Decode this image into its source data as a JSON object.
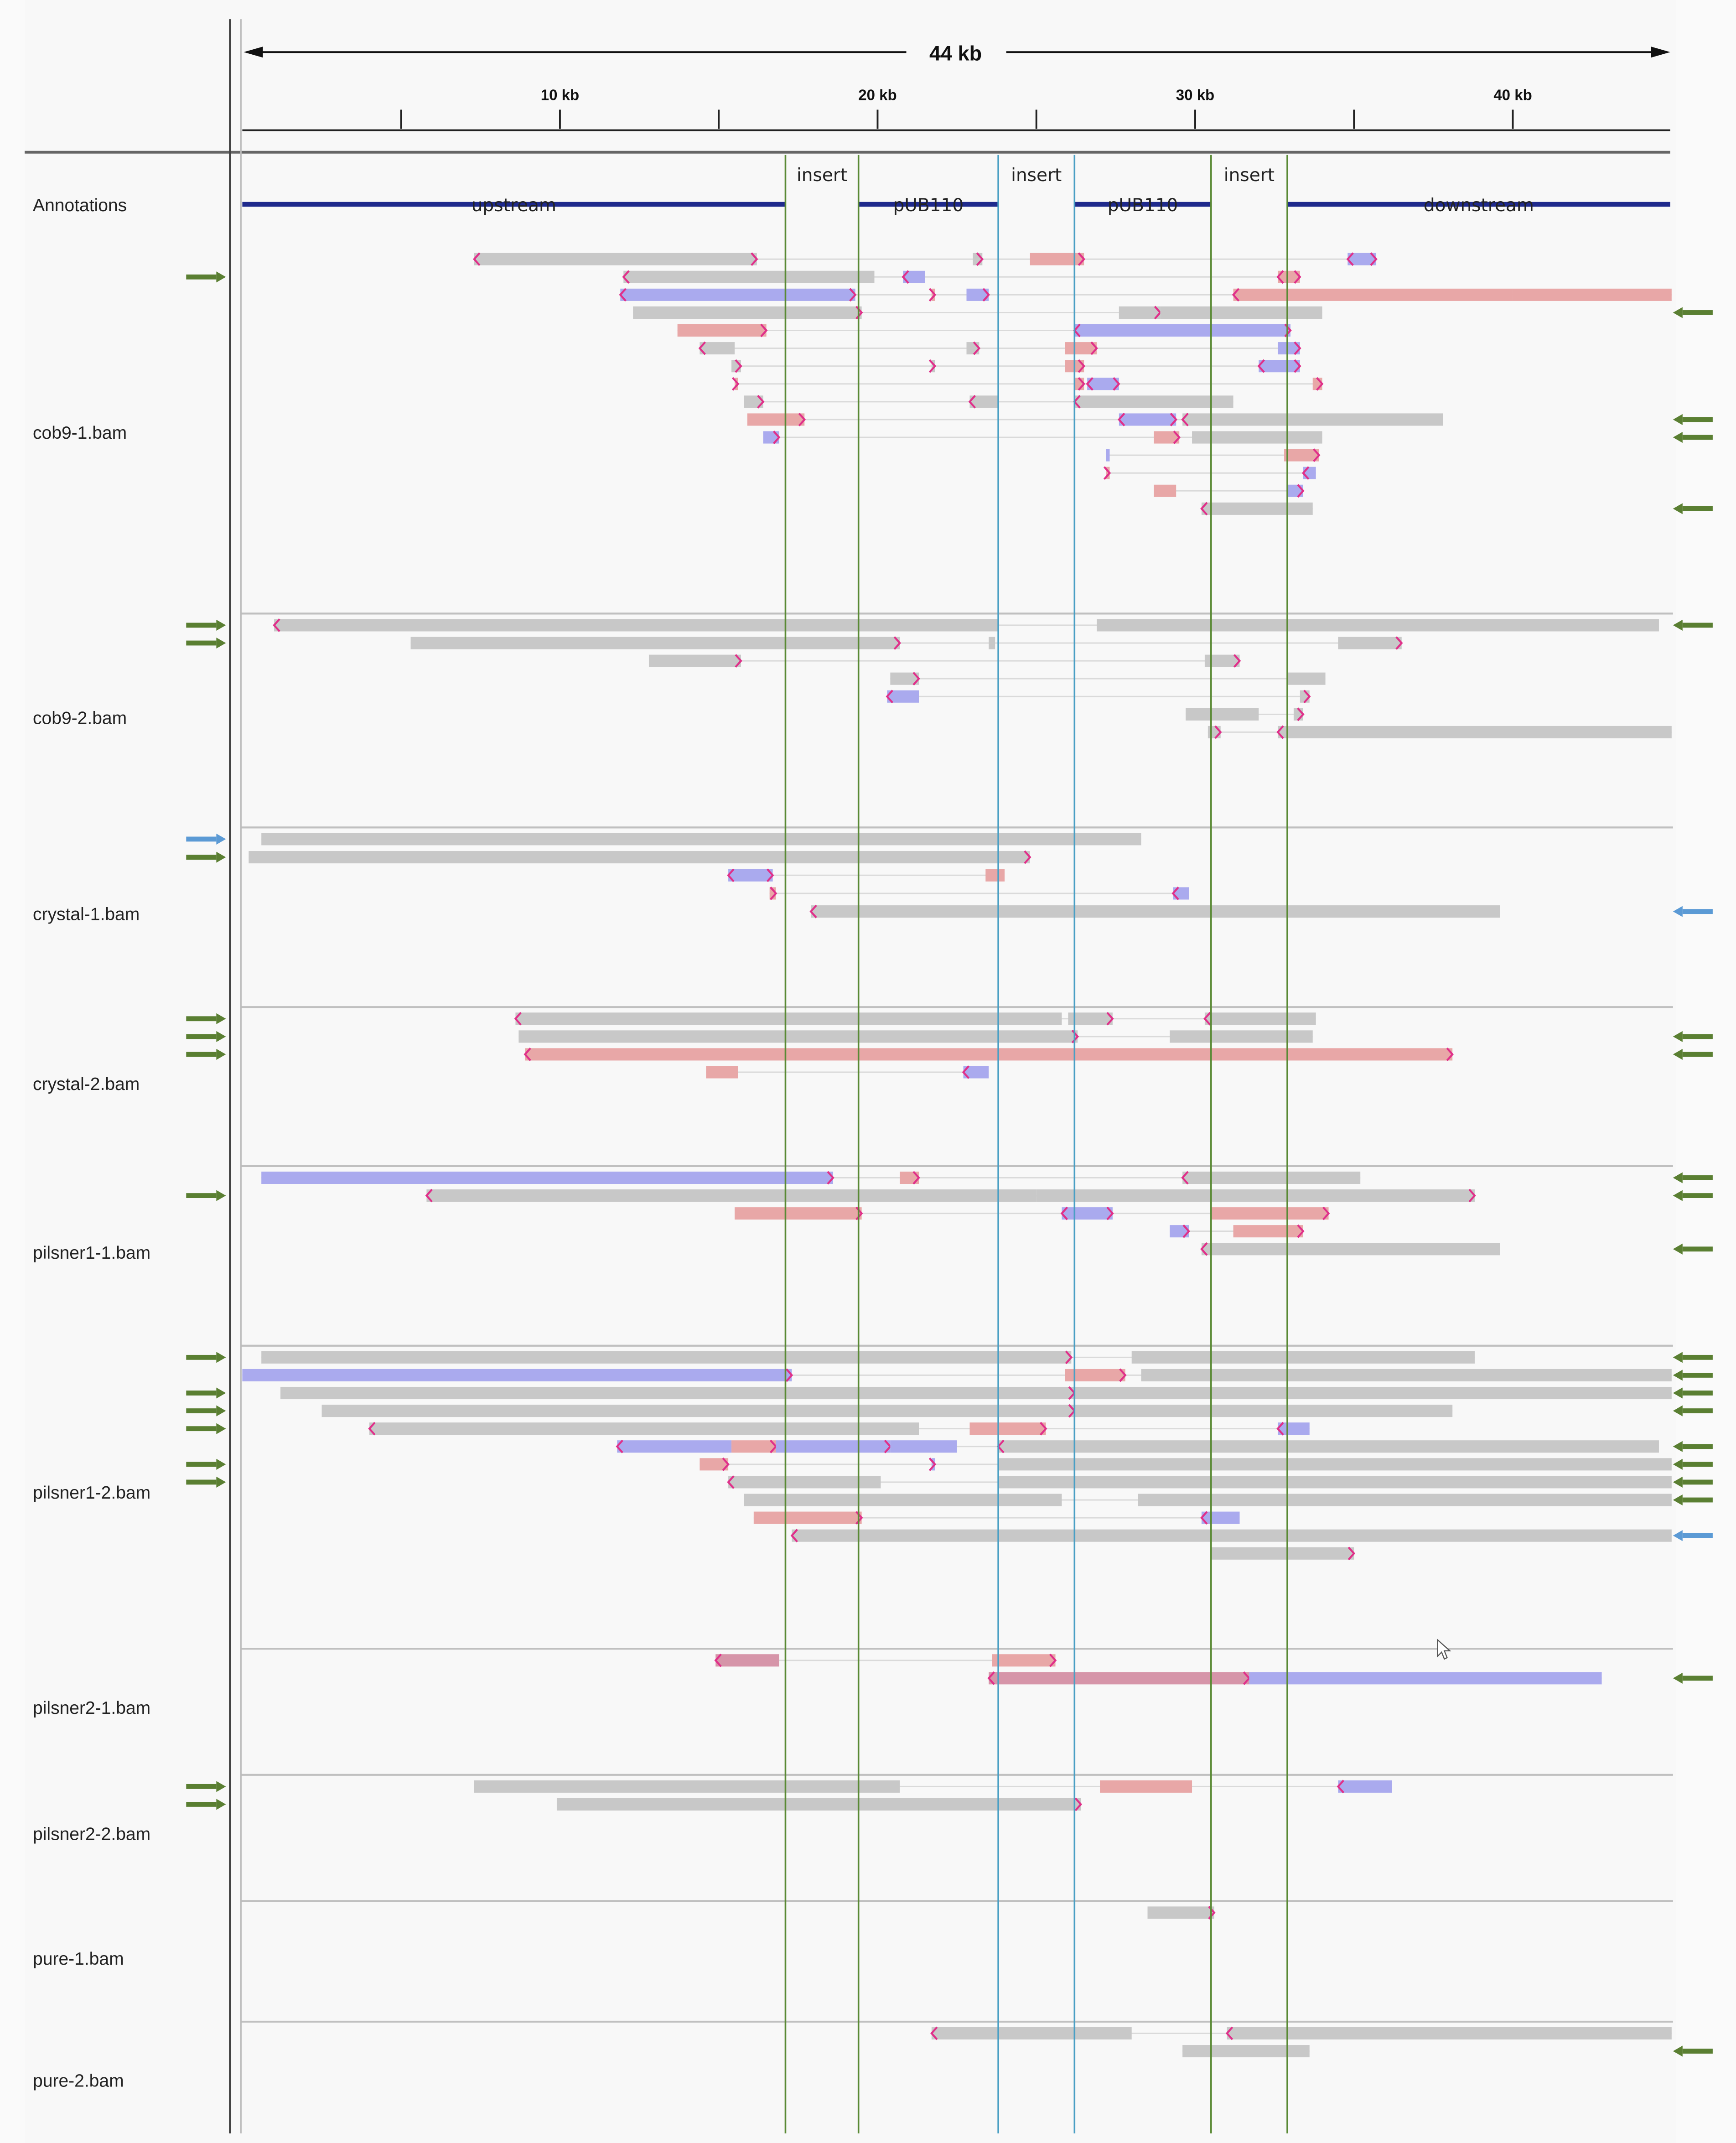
{
  "ruler": {
    "span_label": "44 kb",
    "ticks_kb": [
      5,
      10,
      15,
      20,
      25,
      30,
      35,
      40
    ],
    "tick_labels": [
      "10 kb",
      "20 kb",
      "30 kb",
      "40 kb"
    ],
    "labeled_ticks_kb": [
      10,
      20,
      30,
      40
    ]
  },
  "annotations": {
    "track_label": "Annotations",
    "features": [
      {
        "name": "upstream",
        "start": 0.0,
        "end": 17.1,
        "row": "lower"
      },
      {
        "name": "insert",
        "start": 17.1,
        "end": 19.4,
        "row": "upper"
      },
      {
        "name": "pUB110",
        "start": 19.4,
        "end": 23.8,
        "row": "lower"
      },
      {
        "name": "insert",
        "start": 23.8,
        "end": 26.2,
        "row": "upper"
      },
      {
        "name": "pUB110",
        "start": 26.2,
        "end": 30.5,
        "row": "lower"
      },
      {
        "name": "insert",
        "start": 30.5,
        "end": 32.9,
        "row": "upper"
      },
      {
        "name": "downstream",
        "start": 32.9,
        "end": 45.0,
        "row": "lower"
      }
    ]
  },
  "guide_lines_kb": [
    {
      "pos": 17.1,
      "color": "#5a8a35"
    },
    {
      "pos": 19.4,
      "color": "#5a8a35"
    },
    {
      "pos": 23.8,
      "color": "#4a9fc4"
    },
    {
      "pos": 26.2,
      "color": "#4a9fc4"
    },
    {
      "pos": 30.5,
      "color": "#5a8a35"
    },
    {
      "pos": 32.9,
      "color": "#5a8a35"
    }
  ],
  "colors": {
    "gray": "#c8c8c8",
    "red": "#e8a7a7",
    "blue": "#aaaaee",
    "mauve": "#d695a9",
    "arrow_green": "#5a7f32",
    "arrow_blue": "#5b9ad5",
    "clip": "#e0308a",
    "annot": "#1f2a8c"
  },
  "tracks": [
    {
      "name": "cob9-1.bam",
      "reads": [
        [
          0,
          7.3,
          16.2,
          "g",
          "<",
          ">"
        ],
        [
          0,
          23.0,
          23.3,
          "g",
          "",
          ">"
        ],
        [
          0,
          24.8,
          26.5,
          "r",
          "",
          ">"
        ],
        [
          0,
          34.8,
          35.7,
          "b",
          "<",
          ">"
        ],
        [
          1,
          12.0,
          19.9,
          "g",
          "<",
          ""
        ],
        [
          1,
          20.8,
          21.5,
          "b",
          "<",
          ""
        ],
        [
          1,
          32.6,
          33.3,
          "r",
          "<",
          ">"
        ],
        [
          2,
          11.9,
          19.3,
          "b",
          "<",
          ">"
        ],
        [
          2,
          21.7,
          21.8,
          "r",
          "",
          ">"
        ],
        [
          2,
          22.8,
          23.5,
          "b",
          "",
          ">"
        ],
        [
          2,
          31.2,
          40.0,
          "r",
          "<",
          ""
        ],
        [
          2,
          40.0,
          45.0,
          "r",
          "",
          ""
        ],
        [
          3,
          12.3,
          19.5,
          "g",
          "",
          ">"
        ],
        [
          3,
          27.6,
          28.9,
          "g",
          "",
          ">"
        ],
        [
          3,
          28.9,
          34.0,
          "g",
          "",
          ""
        ],
        [
          4,
          13.7,
          16.5,
          "r",
          "",
          ">"
        ],
        [
          4,
          26.2,
          33.0,
          "b",
          "<",
          ">"
        ],
        [
          5,
          14.4,
          15.5,
          "g",
          "<",
          ""
        ],
        [
          5,
          22.8,
          23.2,
          "g",
          "",
          ">"
        ],
        [
          5,
          25.9,
          26.9,
          "r",
          "",
          ">"
        ],
        [
          5,
          32.6,
          33.3,
          "b",
          "",
          ">"
        ],
        [
          6,
          15.4,
          15.7,
          "g",
          "",
          ">"
        ],
        [
          6,
          21.7,
          21.8,
          "g",
          "",
          ">"
        ],
        [
          6,
          25.9,
          26.5,
          "r",
          "",
          ">"
        ],
        [
          6,
          32.0,
          33.3,
          "b",
          "<",
          ">"
        ],
        [
          7,
          15.5,
          15.6,
          "r",
          "",
          ">"
        ],
        [
          7,
          26.2,
          26.5,
          "r",
          "",
          ">"
        ],
        [
          7,
          26.6,
          27.6,
          "b",
          "<",
          ">"
        ],
        [
          7,
          33.7,
          34.0,
          "r",
          "",
          ">"
        ],
        [
          8,
          15.8,
          16.4,
          "g",
          "",
          ">"
        ],
        [
          8,
          22.9,
          23.8,
          "g",
          "<",
          ""
        ],
        [
          8,
          26.2,
          31.2,
          "g",
          "<",
          ""
        ],
        [
          9,
          15.9,
          17.7,
          "r",
          "",
          ">"
        ],
        [
          9,
          27.6,
          29.4,
          "b",
          "<",
          ">"
        ],
        [
          9,
          29.6,
          37.8,
          "g",
          "<",
          ""
        ],
        [
          10,
          16.4,
          16.9,
          "b",
          "",
          ">"
        ],
        [
          10,
          28.7,
          29.5,
          "r",
          "",
          ">"
        ],
        [
          10,
          29.9,
          34.0,
          "g",
          "",
          ""
        ],
        [
          11,
          27.2,
          27.3,
          "b",
          "",
          ""
        ],
        [
          11,
          32.8,
          33.9,
          "r",
          "",
          ">"
        ],
        [
          12,
          27.2,
          27.3,
          "r",
          "",
          ">"
        ],
        [
          12,
          33.4,
          33.8,
          "b",
          "<",
          ""
        ],
        [
          13,
          28.7,
          29.4,
          "r",
          "",
          ""
        ],
        [
          13,
          32.9,
          33.4,
          "b",
          "",
          ">"
        ],
        [
          14,
          30.2,
          33.7,
          "g",
          "<",
          ""
        ]
      ],
      "left_arrows": [
        [
          1,
          "g"
        ]
      ],
      "right_arrows": [
        [
          3,
          "g"
        ],
        [
          9,
          "g"
        ],
        [
          10,
          "g"
        ],
        [
          14,
          "g"
        ]
      ]
    },
    {
      "name": "cob9-2.bam",
      "reads": [
        [
          0,
          1.0,
          23.8,
          "g",
          "<",
          ""
        ],
        [
          0,
          26.9,
          44.6,
          "g",
          "",
          ""
        ],
        [
          1,
          5.3,
          20.7,
          "g",
          "",
          ">"
        ],
        [
          1,
          23.5,
          23.7,
          "g",
          "",
          ""
        ],
        [
          1,
          34.5,
          36.5,
          "g",
          "",
          ">"
        ],
        [
          2,
          12.8,
          15.7,
          "g",
          "",
          ">"
        ],
        [
          2,
          30.3,
          31.4,
          "g",
          "",
          ">"
        ],
        [
          3,
          20.4,
          21.3,
          "g",
          "",
          ">"
        ],
        [
          3,
          32.9,
          34.1,
          "g",
          "",
          ""
        ],
        [
          4,
          20.3,
          21.3,
          "b",
          "<",
          ""
        ],
        [
          4,
          33.3,
          33.6,
          "g",
          "",
          ">"
        ],
        [
          5,
          29.7,
          32.0,
          "g",
          "",
          ""
        ],
        [
          5,
          33.1,
          33.4,
          "g",
          "",
          ">"
        ],
        [
          6,
          30.4,
          30.8,
          "g",
          "",
          ">"
        ],
        [
          6,
          32.6,
          45.0,
          "g",
          "<",
          ""
        ]
      ],
      "left_arrows": [
        [
          0,
          "g"
        ],
        [
          1,
          "g"
        ]
      ],
      "right_arrows": [
        [
          0,
          "g"
        ]
      ]
    },
    {
      "name": "crystal-1.bam",
      "reads": [
        [
          0,
          0.6,
          28.3,
          "g",
          "",
          ""
        ],
        [
          1,
          0.2,
          24.8,
          "g",
          "",
          ">"
        ],
        [
          2,
          15.3,
          16.7,
          "b",
          "<",
          ">"
        ],
        [
          2,
          23.4,
          24.0,
          "r",
          "",
          ""
        ],
        [
          3,
          16.6,
          16.8,
          "r",
          "",
          ">"
        ],
        [
          3,
          29.3,
          29.8,
          "b",
          "<",
          ""
        ],
        [
          4,
          17.9,
          39.6,
          "g",
          "<",
          ""
        ]
      ],
      "left_arrows": [
        [
          0,
          "b"
        ],
        [
          1,
          "g"
        ]
      ],
      "right_arrows": [
        [
          4,
          "b"
        ]
      ]
    },
    {
      "name": "crystal-2.bam",
      "reads": [
        [
          0,
          8.6,
          25.8,
          "g",
          "<",
          ""
        ],
        [
          0,
          26.0,
          27.4,
          "g",
          "",
          ">"
        ],
        [
          0,
          30.3,
          33.8,
          "g",
          "<",
          ""
        ],
        [
          1,
          8.7,
          26.3,
          "g",
          "",
          ">"
        ],
        [
          1,
          29.2,
          33.7,
          "g",
          "",
          ""
        ],
        [
          2,
          8.9,
          23.8,
          "r",
          "<",
          ""
        ],
        [
          2,
          23.8,
          38.1,
          "r",
          "",
          ">"
        ],
        [
          3,
          14.6,
          15.6,
          "r",
          "",
          ""
        ],
        [
          3,
          22.7,
          23.5,
          "b",
          "<",
          ""
        ]
      ],
      "left_arrows": [
        [
          0,
          "g"
        ],
        [
          1,
          "g"
        ],
        [
          2,
          "g"
        ]
      ],
      "right_arrows": [
        [
          1,
          "g"
        ],
        [
          2,
          "g"
        ]
      ]
    },
    {
      "name": "pilsner1-1.bam",
      "reads": [
        [
          0,
          0.6,
          18.6,
          "b",
          "",
          ">"
        ],
        [
          0,
          20.7,
          21.3,
          "r",
          "",
          ">"
        ],
        [
          0,
          29.6,
          35.2,
          "g",
          "<",
          ""
        ],
        [
          1,
          5.8,
          25.0,
          "g",
          "<",
          ""
        ],
        [
          1,
          25.0,
          26.2,
          "g",
          "",
          ""
        ],
        [
          1,
          26.2,
          38.8,
          "g",
          "",
          ">"
        ],
        [
          2,
          15.5,
          19.5,
          "r",
          "",
          ">"
        ],
        [
          2,
          25.8,
          27.4,
          "b",
          "<",
          ">"
        ],
        [
          2,
          30.5,
          34.2,
          "r",
          "",
          ">"
        ],
        [
          3,
          29.2,
          29.8,
          "b",
          "",
          ">"
        ],
        [
          3,
          31.2,
          33.4,
          "r",
          "",
          ">"
        ],
        [
          4,
          30.2,
          39.6,
          "g",
          "<",
          ""
        ]
      ],
      "left_arrows": [
        [
          1,
          "g"
        ]
      ],
      "right_arrows": [
        [
          0,
          "g"
        ],
        [
          1,
          "g"
        ],
        [
          4,
          "g"
        ]
      ]
    },
    {
      "name": "pilsner1-2.bam",
      "reads": [
        [
          0,
          0.6,
          26.1,
          "g",
          "",
          ">"
        ],
        [
          0,
          28.0,
          38.8,
          "g",
          "",
          ""
        ],
        [
          1,
          0.0,
          17.3,
          "b",
          "",
          ">"
        ],
        [
          1,
          25.9,
          27.8,
          "r",
          "",
          ">"
        ],
        [
          1,
          28.3,
          45.0,
          "g",
          "",
          ""
        ],
        [
          2,
          1.2,
          23.8,
          "g",
          "",
          ""
        ],
        [
          2,
          23.8,
          26.2,
          "g",
          "",
          ">"
        ],
        [
          2,
          26.2,
          45.0,
          "g",
          "",
          ""
        ],
        [
          3,
          2.5,
          23.8,
          "g",
          "",
          ""
        ],
        [
          3,
          23.8,
          26.2,
          "g",
          "",
          ">"
        ],
        [
          3,
          26.2,
          38.1,
          "g",
          "",
          ""
        ],
        [
          4,
          4.0,
          21.3,
          "g",
          "<",
          ""
        ],
        [
          4,
          22.9,
          25.3,
          "r",
          "",
          ">"
        ],
        [
          4,
          32.6,
          33.6,
          "b",
          "<",
          ""
        ],
        [
          5,
          11.8,
          15.4,
          "b",
          "<",
          ""
        ],
        [
          5,
          15.4,
          16.8,
          "r",
          "",
          ">"
        ],
        [
          5,
          16.8,
          20.4,
          "b",
          "",
          ">"
        ],
        [
          5,
          20.4,
          22.5,
          "b",
          "",
          ""
        ],
        [
          5,
          23.8,
          44.6,
          "g",
          "<",
          ""
        ],
        [
          6,
          14.4,
          15.3,
          "r",
          "",
          ">"
        ],
        [
          6,
          21.7,
          21.8,
          "b",
          "",
          ">"
        ],
        [
          6,
          23.8,
          45.0,
          "g",
          "",
          ""
        ],
        [
          7,
          15.3,
          20.1,
          "g",
          "<",
          ""
        ],
        [
          7,
          23.8,
          45.0,
          "g",
          "",
          ""
        ],
        [
          8,
          15.8,
          25.8,
          "g",
          "",
          ""
        ],
        [
          8,
          28.2,
          45.0,
          "g",
          "",
          ""
        ],
        [
          9,
          16.1,
          19.5,
          "r",
          "",
          ">"
        ],
        [
          9,
          30.2,
          31.4,
          "b",
          "<",
          ""
        ],
        [
          10,
          17.3,
          45.0,
          "g",
          "<",
          ""
        ],
        [
          11,
          30.5,
          35.0,
          "g",
          "",
          ">"
        ]
      ],
      "left_arrows": [
        [
          0,
          "g"
        ],
        [
          2,
          "g"
        ],
        [
          3,
          "g"
        ],
        [
          4,
          "g"
        ],
        [
          6,
          "g"
        ],
        [
          7,
          "g"
        ]
      ],
      "right_arrows": [
        [
          0,
          "g"
        ],
        [
          1,
          "g"
        ],
        [
          2,
          "g"
        ],
        [
          3,
          "g"
        ],
        [
          5,
          "g"
        ],
        [
          6,
          "g"
        ],
        [
          7,
          "g"
        ],
        [
          8,
          "g"
        ],
        [
          10,
          "b"
        ]
      ]
    },
    {
      "name": "pilsner2-1.bam",
      "reads": [
        [
          0,
          14.9,
          16.9,
          "m",
          "<",
          ""
        ],
        [
          0,
          23.6,
          25.6,
          "r",
          "",
          ">"
        ],
        [
          1,
          23.5,
          31.7,
          "m",
          "<",
          ">"
        ],
        [
          1,
          31.7,
          42.8,
          "b",
          "",
          ""
        ]
      ],
      "left_arrows": [],
      "right_arrows": [
        [
          1,
          "g"
        ]
      ]
    },
    {
      "name": "pilsner2-2.bam",
      "reads": [
        [
          0,
          7.3,
          20.7,
          "g",
          "",
          ""
        ],
        [
          0,
          27.0,
          29.9,
          "r",
          "",
          ""
        ],
        [
          0,
          34.5,
          36.2,
          "b",
          "<",
          ""
        ],
        [
          1,
          9.9,
          26.4,
          "g",
          "",
          ">"
        ]
      ],
      "left_arrows": [
        [
          0,
          "g"
        ],
        [
          1,
          "g"
        ]
      ],
      "right_arrows": []
    },
    {
      "name": "pure-1.bam",
      "reads": [
        [
          0,
          28.5,
          30.6,
          "g",
          "",
          ">"
        ]
      ],
      "left_arrows": [],
      "right_arrows": []
    },
    {
      "name": "pure-2.bam",
      "reads": [
        [
          0,
          21.7,
          28.0,
          "g",
          "<",
          ""
        ],
        [
          0,
          31.0,
          45.0,
          "g",
          "<",
          ""
        ],
        [
          1,
          29.6,
          33.6,
          "g",
          "",
          ""
        ]
      ],
      "left_arrows": [],
      "right_arrows": [
        [
          1,
          "g"
        ]
      ]
    }
  ]
}
